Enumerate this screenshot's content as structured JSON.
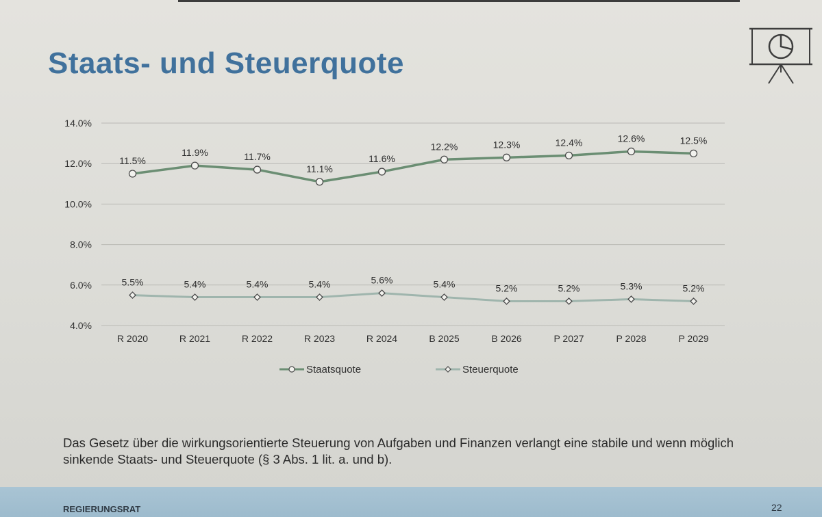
{
  "slide": {
    "title": "Staats- und Steuerquote",
    "note": "Das Gesetz über die wirkungsorientierte Steuerung von Aufgaben und Finanzen verlangt eine stabile und wenn möglich sinkende Staats- und Steuerquote (§ 3 Abs. 1 lit. a. und b).",
    "footer_label": "REGIERUNGSRAT",
    "page_number": "22",
    "icon": "presentation-pie-chart-icon"
  },
  "chart_data": {
    "type": "line",
    "categories": [
      "R 2020",
      "R 2021",
      "R 2022",
      "R 2023",
      "R 2024",
      "B 2025",
      "B 2026",
      "P 2027",
      "P 2028",
      "P 2029"
    ],
    "series": [
      {
        "name": "Staatsquote",
        "values": [
          11.5,
          11.9,
          11.7,
          11.1,
          11.6,
          12.2,
          12.3,
          12.4,
          12.6,
          12.5
        ],
        "labels": [
          "11.5%",
          "11.9%",
          "11.7%",
          "11.1%",
          "11.6%",
          "12.2%",
          "12.3%",
          "12.4%",
          "12.6%",
          "12.5%"
        ],
        "marker": "circle",
        "color": "#6b8e73"
      },
      {
        "name": "Steuerquote",
        "values": [
          5.5,
          5.4,
          5.4,
          5.4,
          5.6,
          5.4,
          5.2,
          5.2,
          5.3,
          5.2
        ],
        "labels": [
          "5.5%",
          "5.4%",
          "5.4%",
          "5.4%",
          "5.6%",
          "5.4%",
          "5.2%",
          "5.2%",
          "5.3%",
          "5.2%"
        ],
        "marker": "diamond",
        "color": "#9fb5ad"
      }
    ],
    "y_ticks": [
      "4.0%",
      "6.0%",
      "8.0%",
      "10.0%",
      "12.0%",
      "14.0%"
    ],
    "ylim": [
      4.0,
      14.0
    ],
    "grid": true,
    "legend_position": "bottom",
    "title": "",
    "xlabel": "",
    "ylabel": ""
  }
}
